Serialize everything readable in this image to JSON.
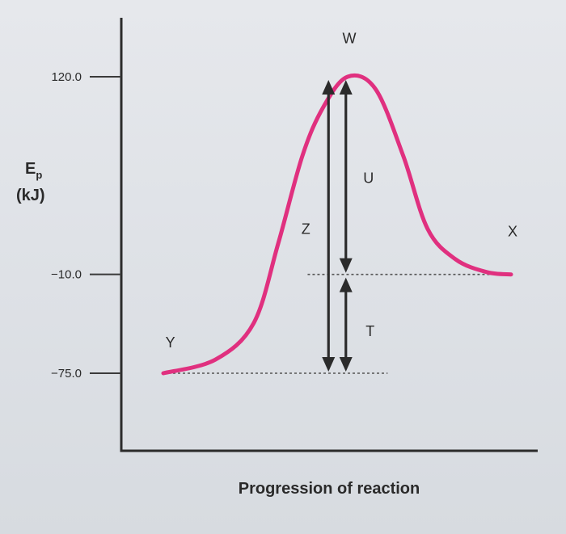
{
  "chart_data": {
    "type": "line",
    "title": "",
    "xlabel": "Progression of reaction",
    "ylabel": {
      "main": "E",
      "subscript": "p",
      "unit": "(kJ)"
    },
    "yticks": [
      {
        "value": 120.0,
        "label": "120.0"
      },
      {
        "value": -10.0,
        "label": "−10.0"
      },
      {
        "value": -75.0,
        "label": "−75.0"
      }
    ],
    "series": [
      {
        "color": "#e0307f",
        "points": [
          {
            "x": 0.0,
            "y": -75.0
          },
          {
            "x": 0.15,
            "y": -66.0
          },
          {
            "x": 0.26,
            "y": -42.0
          },
          {
            "x": 0.33,
            "y": 10.0
          },
          {
            "x": 0.4,
            "y": 68.0
          },
          {
            "x": 0.46,
            "y": 100.0
          },
          {
            "x": 0.53,
            "y": 120.0
          },
          {
            "x": 0.61,
            "y": 112.0
          },
          {
            "x": 0.69,
            "y": 68.0
          },
          {
            "x": 0.76,
            "y": 20.0
          },
          {
            "x": 0.84,
            "y": 0.0
          },
          {
            "x": 0.93,
            "y": -8.5
          },
          {
            "x": 1.0,
            "y": -10.0
          }
        ]
      }
    ],
    "point_labels": [
      {
        "text": "Y",
        "x": 0.02,
        "y": -58.0
      },
      {
        "text": "W",
        "x": 0.535,
        "y": 142.0
      },
      {
        "text": "X",
        "x": 1.0,
        "y": 15.0
      }
    ],
    "arrows": [
      {
        "label": "Z",
        "x": 0.475,
        "y_from": -75.0,
        "y_to": 120.0
      },
      {
        "label": "U",
        "x": 0.525,
        "y_from": -10.0,
        "y_to": 120.0
      },
      {
        "label": "T",
        "x": 0.525,
        "y_from": -75.0,
        "y_to": -10.0
      }
    ],
    "reference_lines": [
      {
        "y": -10.0,
        "x_from": 0.415,
        "x_to": 1.0
      },
      {
        "y": -75.0,
        "x_from": 0.0,
        "x_to": 0.645
      }
    ],
    "ylim": [
      -120.0,
      160.0
    ],
    "grid": false,
    "legend": "none"
  }
}
